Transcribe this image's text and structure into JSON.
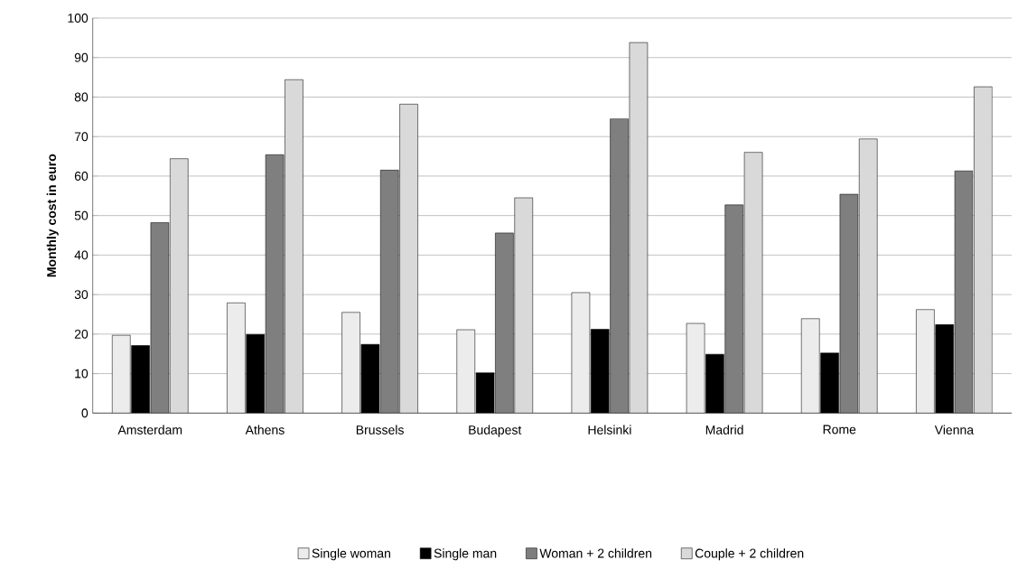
{
  "chart_data": {
    "type": "bar",
    "ylabel": "Monthly cost in euro",
    "categories": [
      "Amsterdam",
      "Athens",
      "Brussels",
      "Budapest",
      "Helsinki",
      "Madrid",
      "Rome",
      "Vienna"
    ],
    "series": [
      {
        "name": "Single woman",
        "color": "#ececec",
        "values": [
          19.7,
          27.9,
          25.5,
          21.1,
          30.5,
          22.7,
          23.9,
          26.2
        ]
      },
      {
        "name": "Single man",
        "color": "#000000",
        "values": [
          17.1,
          19.9,
          17.4,
          10.2,
          21.2,
          14.9,
          15.2,
          22.4
        ]
      },
      {
        "name": "Woman + 2 children",
        "color": "#7f7f7f",
        "values": [
          48.2,
          65.4,
          61.5,
          45.6,
          74.5,
          52.7,
          55.4,
          61.3
        ]
      },
      {
        "name": "Couple + 2 children",
        "color": "#d9d9d9",
        "values": [
          64.4,
          84.4,
          78.2,
          54.5,
          93.8,
          66.0,
          69.4,
          82.6
        ]
      }
    ],
    "ylim": [
      0,
      100
    ],
    "yticks": [
      0,
      10,
      20,
      30,
      40,
      50,
      60,
      70,
      80,
      90,
      100
    ],
    "grid": "y",
    "legend": "bottom"
  }
}
